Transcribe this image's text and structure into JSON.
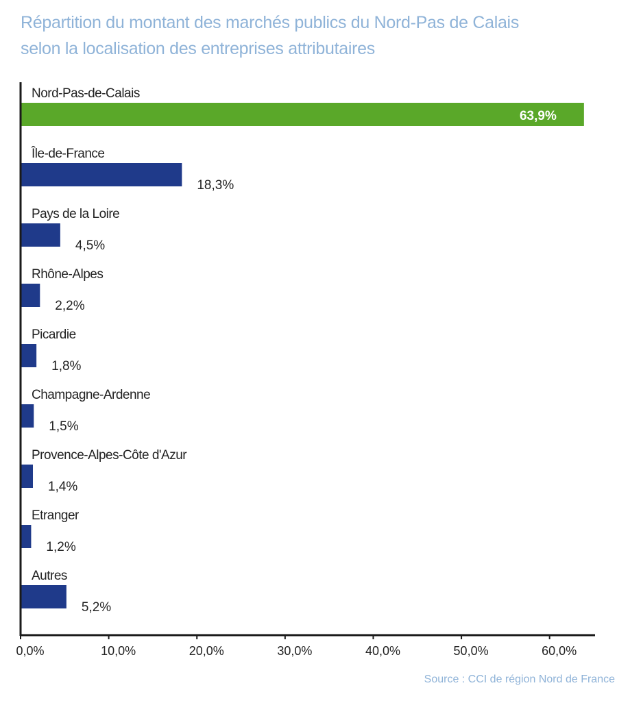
{
  "title": {
    "line1": "Répartition du montant des marchés publics du Nord-Pas de Calais",
    "line2": "selon la localisation des entreprises attributaires"
  },
  "source": "Source : CCI de région Nord de France",
  "colors": {
    "highlight": "#5aa829",
    "bar": "#1f3a8a",
    "axis": "#1a1a1a",
    "text": "#222222",
    "title": "#8fb3d8"
  },
  "chart_data": {
    "type": "bar",
    "orientation": "horizontal",
    "categories": [
      "Nord-Pas-de-Calais",
      "Île-de-France",
      "Pays de la Loire",
      "Rhône-Alpes",
      "Picardie",
      "Champagne-Ardenne",
      "Provence-Alpes-Côte d'Azur",
      "Etranger",
      "Autres"
    ],
    "values": [
      63.9,
      18.3,
      4.5,
      2.2,
      1.8,
      1.5,
      1.4,
      1.2,
      5.2
    ],
    "value_labels": [
      "63,9%",
      "18,3%",
      "4,5%",
      "2,2%",
      "1,8%",
      "1,5%",
      "1,4%",
      "1,2%",
      "5,2%"
    ],
    "highlight_index": 0,
    "xlim": [
      0,
      65
    ],
    "x_ticks": [
      0,
      10,
      20,
      30,
      40,
      50,
      60
    ],
    "x_tick_labels": [
      "0,0%",
      "10,0%",
      "20,0%",
      "30,0%",
      "40,0%",
      "50,0%",
      "60,0%"
    ],
    "grid": false,
    "legend": "none"
  }
}
